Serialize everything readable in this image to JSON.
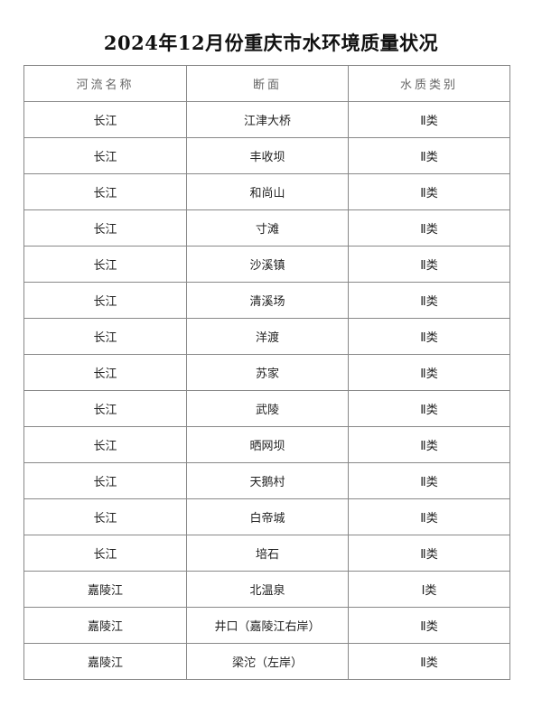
{
  "title": "2024年12月份重庆市水环境质量状况",
  "table": {
    "headers": [
      "河流名称",
      "断面",
      "水质类别"
    ],
    "rows": [
      [
        "长江",
        "江津大桥",
        "Ⅱ类"
      ],
      [
        "长江",
        "丰收坝",
        "Ⅱ类"
      ],
      [
        "长江",
        "和尚山",
        "Ⅱ类"
      ],
      [
        "长江",
        "寸滩",
        "Ⅱ类"
      ],
      [
        "长江",
        "沙溪镇",
        "Ⅱ类"
      ],
      [
        "长江",
        "清溪场",
        "Ⅱ类"
      ],
      [
        "长江",
        "洋渡",
        "Ⅱ类"
      ],
      [
        "长江",
        "苏家",
        "Ⅱ类"
      ],
      [
        "长江",
        "武陵",
        "Ⅱ类"
      ],
      [
        "长江",
        "晒网坝",
        "Ⅱ类"
      ],
      [
        "长江",
        "天鹅村",
        "Ⅱ类"
      ],
      [
        "长江",
        "白帝城",
        "Ⅱ类"
      ],
      [
        "长江",
        "培石",
        "Ⅱ类"
      ],
      [
        "嘉陵江",
        "北温泉",
        "Ⅰ类"
      ],
      [
        "嘉陵江",
        "井口（嘉陵江右岸）",
        "Ⅱ类"
      ],
      [
        "嘉陵江",
        "梁沱（左岸）",
        "Ⅱ类"
      ]
    ]
  }
}
